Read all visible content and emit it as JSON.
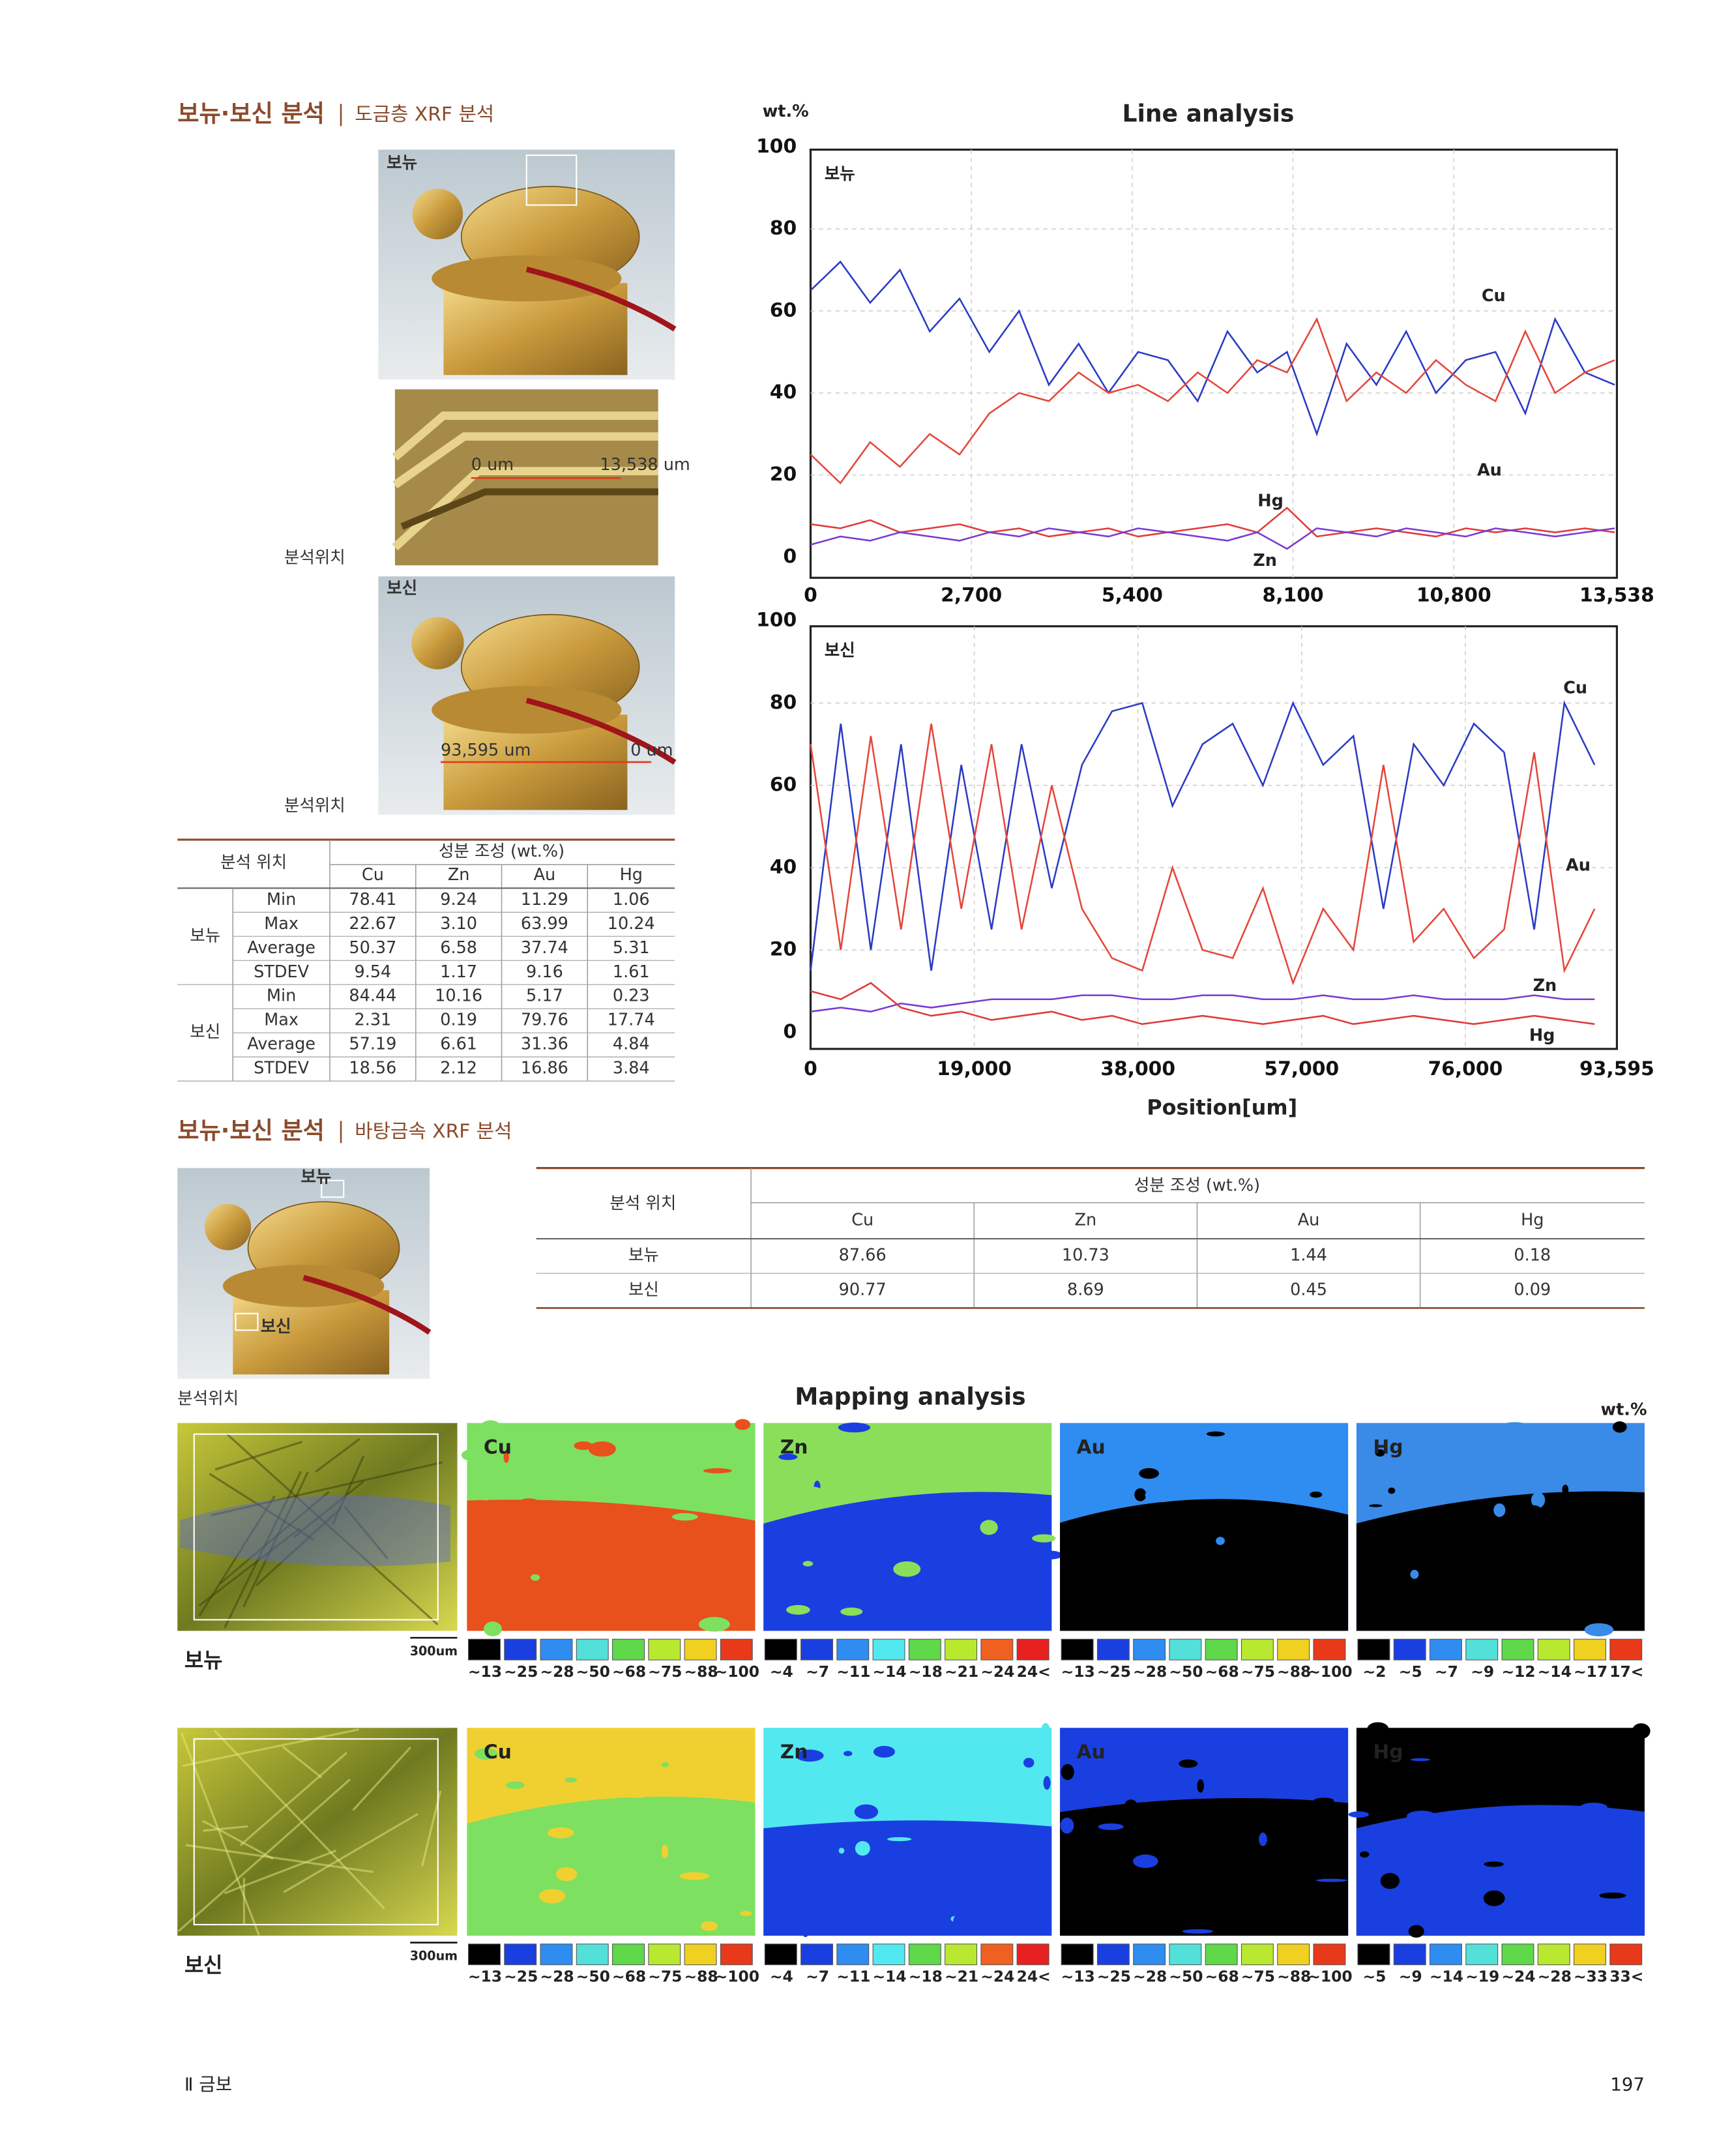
{
  "section1": {
    "title": "보뉴·보신 분석",
    "subtitle": "도금층 XRF 분석"
  },
  "photos": {
    "bonyu_label": "보뉴",
    "detail_start": "0 um",
    "detail_end": "13,538 um",
    "position_label_1": "분석위치",
    "bosin_label": "보신",
    "bosin_start": "93,595 um",
    "bosin_end": "0 um",
    "position_label_2": "분석위치"
  },
  "table1": {
    "header": {
      "location": "분석 위치",
      "composition": "성분 조성 (wt.%)",
      "elements": [
        "Cu",
        "Zn",
        "Au",
        "Hg"
      ]
    },
    "groups": [
      {
        "name": "보뉴",
        "rows": [
          [
            "Min",
            "78.41",
            "9.24",
            "11.29",
            "1.06"
          ],
          [
            "Max",
            "22.67",
            "3.10",
            "63.99",
            "10.24"
          ],
          [
            "Average",
            "50.37",
            "6.58",
            "37.74",
            "5.31"
          ],
          [
            "STDEV",
            "9.54",
            "1.17",
            "9.16",
            "1.61"
          ]
        ]
      },
      {
        "name": "보신",
        "rows": [
          [
            "Min",
            "84.44",
            "10.16",
            "5.17",
            "0.23"
          ],
          [
            "Max",
            "2.31",
            "0.19",
            "79.76",
            "17.74"
          ],
          [
            "Average",
            "57.19",
            "6.61",
            "31.36",
            "4.84"
          ],
          [
            "STDEV",
            "18.56",
            "2.12",
            "16.86",
            "3.84"
          ]
        ]
      }
    ]
  },
  "chart_data": [
    {
      "type": "line",
      "title": "Line analysis",
      "y_label": "wt.%",
      "panel_label": "보뉴",
      "x": [
        0,
        500,
        1000,
        1500,
        2000,
        2500,
        3000,
        3500,
        4000,
        4500,
        5000,
        5500,
        6000,
        6500,
        7000,
        7500,
        8000,
        8500,
        9000,
        9500,
        10000,
        10500,
        11000,
        11500,
        12000,
        12500,
        13000,
        13500
      ],
      "xlim": [
        0,
        13538
      ],
      "xticks": [
        0,
        {
          "value": 2700,
          "label": "2,700"
        },
        {
          "value": 5400,
          "label": "5,400"
        },
        {
          "value": 8100,
          "label": "8,100"
        },
        {
          "value": 10800,
          "label": "10,800"
        },
        {
          "value": 13538,
          "label": "13,538"
        }
      ],
      "ylim": [
        0,
        100
      ],
      "yticks": [
        0,
        20,
        40,
        60,
        80,
        100
      ],
      "grid": true,
      "series": [
        {
          "name": "Cu",
          "color": "#2b3bc4",
          "values": [
            65,
            72,
            62,
            70,
            55,
            63,
            50,
            60,
            42,
            52,
            40,
            50,
            48,
            38,
            55,
            45,
            50,
            30,
            52,
            42,
            55,
            40,
            48,
            50,
            35,
            58,
            45,
            42
          ]
        },
        {
          "name": "Au",
          "color": "#e4473a",
          "values": [
            25,
            18,
            28,
            22,
            30,
            25,
            35,
            40,
            38,
            45,
            40,
            42,
            38,
            45,
            40,
            48,
            45,
            58,
            38,
            45,
            40,
            48,
            42,
            38,
            55,
            40,
            45,
            48
          ]
        },
        {
          "name": "Hg",
          "color": "#e03a3a",
          "values": [
            8,
            7,
            9,
            6,
            7,
            8,
            6,
            7,
            5,
            6,
            7,
            5,
            6,
            7,
            8,
            6,
            12,
            5,
            6,
            7,
            6,
            5,
            7,
            6,
            7,
            6,
            7,
            6
          ]
        },
        {
          "name": "Zn",
          "color": "#7a3ad0",
          "values": [
            3,
            5,
            4,
            6,
            5,
            4,
            6,
            5,
            7,
            6,
            5,
            7,
            6,
            5,
            4,
            6,
            2,
            7,
            6,
            5,
            7,
            6,
            5,
            7,
            6,
            5,
            6,
            7
          ]
        }
      ]
    },
    {
      "type": "line",
      "panel_label": "보신",
      "x_label": "Position[um]",
      "x": [
        0,
        3500,
        7000,
        10500,
        14000,
        17500,
        21000,
        24500,
        28000,
        31500,
        35000,
        38500,
        42000,
        45500,
        49000,
        52500,
        56000,
        59500,
        63000,
        66500,
        70000,
        73500,
        77000,
        80500,
        84000,
        87500,
        91000
      ],
      "xlim": [
        0,
        93595
      ],
      "xticks": [
        0,
        {
          "value": 19000,
          "label": "19,000"
        },
        {
          "value": 38000,
          "label": "38,000"
        },
        {
          "value": 57000,
          "label": "57,000"
        },
        {
          "value": 76000,
          "label": "76,000"
        },
        {
          "value": 93595,
          "label": "93,595"
        }
      ],
      "ylim": [
        0,
        100
      ],
      "yticks": [
        0,
        20,
        40,
        60,
        80,
        100
      ],
      "grid": true,
      "series": [
        {
          "name": "Cu",
          "color": "#2b3bc4",
          "values": [
            15,
            75,
            20,
            70,
            15,
            65,
            25,
            70,
            35,
            65,
            78,
            80,
            55,
            70,
            75,
            60,
            80,
            65,
            72,
            30,
            70,
            60,
            75,
            68,
            25,
            80,
            65
          ]
        },
        {
          "name": "Au",
          "color": "#e4473a",
          "values": [
            70,
            20,
            72,
            25,
            75,
            30,
            70,
            25,
            60,
            30,
            18,
            15,
            40,
            20,
            18,
            35,
            12,
            30,
            20,
            65,
            22,
            30,
            18,
            25,
            68,
            15,
            30
          ]
        },
        {
          "name": "Zn",
          "color": "#7a3ad0",
          "values": [
            5,
            6,
            5,
            7,
            6,
            7,
            8,
            8,
            8,
            9,
            9,
            8,
            8,
            9,
            9,
            8,
            8,
            9,
            8,
            8,
            9,
            8,
            8,
            8,
            9,
            8,
            8
          ]
        },
        {
          "name": "Hg",
          "color": "#e03a3a",
          "values": [
            10,
            8,
            12,
            6,
            4,
            5,
            3,
            4,
            5,
            3,
            4,
            2,
            3,
            4,
            3,
            2,
            3,
            4,
            2,
            3,
            4,
            3,
            2,
            3,
            4,
            3,
            2
          ]
        }
      ]
    }
  ],
  "section2": {
    "title": "보뉴·보신 분석",
    "subtitle": "바탕금속 XRF 분석"
  },
  "photo2": {
    "top_label": "보뉴",
    "bottom_label": "보신",
    "position_label": "분석위치"
  },
  "table2": {
    "header": {
      "location": "분석 위치",
      "composition": "성분 조성 (wt.%)",
      "elements": [
        "Cu",
        "Zn",
        "Au",
        "Hg"
      ]
    },
    "rows": [
      [
        "보뉴",
        "87.66",
        "10.73",
        "1.44",
        "0.18"
      ],
      [
        "보신",
        "90.77",
        "8.69",
        "0.45",
        "0.09"
      ]
    ]
  },
  "mapping": {
    "title": "Mapping analysis",
    "unit": "wt.%",
    "rows": [
      {
        "label": "보뉴",
        "scale": "300um",
        "panels": [
          {
            "element": "Cu",
            "legend": [
              "~13",
              "~25",
              "~28",
              "~50",
              "~68",
              "~75",
              "~88",
              "~100"
            ]
          },
          {
            "element": "Zn",
            "legend": [
              "~4",
              "~7",
              "~11",
              "~14",
              "~18",
              "~21",
              "~24",
              "24<"
            ]
          },
          {
            "element": "Au",
            "legend": [
              "~13",
              "~25",
              "~28",
              "~50",
              "~68",
              "~75",
              "~88",
              "~100"
            ]
          },
          {
            "element": "Hg",
            "legend": [
              "~2",
              "~5",
              "~7",
              "~9",
              "~12",
              "~14",
              "~17",
              "17<"
            ]
          }
        ]
      },
      {
        "label": "보신",
        "scale": "300um",
        "panels": [
          {
            "element": "Cu",
            "legend": [
              "~13",
              "~25",
              "~28",
              "~50",
              "~68",
              "~75",
              "~88",
              "~100"
            ]
          },
          {
            "element": "Zn",
            "legend": [
              "~4",
              "~7",
              "~11",
              "~14",
              "~18",
              "~21",
              "~24",
              "24<"
            ]
          },
          {
            "element": "Au",
            "legend": [
              "~13",
              "~25",
              "~28",
              "~50",
              "~68",
              "~75",
              "~88",
              "~100"
            ]
          },
          {
            "element": "Hg",
            "legend": [
              "~5",
              "~9",
              "~14",
              "~19",
              "~24",
              "~28",
              "~33",
              "33<"
            ]
          }
        ]
      }
    ]
  },
  "footer": {
    "section": "Ⅱ 금보",
    "page": "197"
  }
}
